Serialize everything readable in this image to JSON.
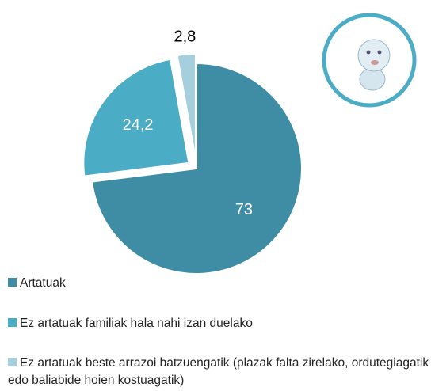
{
  "chart_data": {
    "type": "pie",
    "categories": [
      "Artatuak",
      "Ez artatuak familiak hala nahi izan duelako",
      "Ez artatuak beste arrazoi batzuengatik (plazak falta zirelako, ordutegiagatik edo baliabide hoien kostuagatik)"
    ],
    "values": [
      73,
      24.2,
      2.8
    ],
    "value_labels": [
      "73",
      "24,2",
      "2,8"
    ],
    "colors": [
      "#3e8da5",
      "#4bacc6",
      "#a5cfdd"
    ]
  }
}
